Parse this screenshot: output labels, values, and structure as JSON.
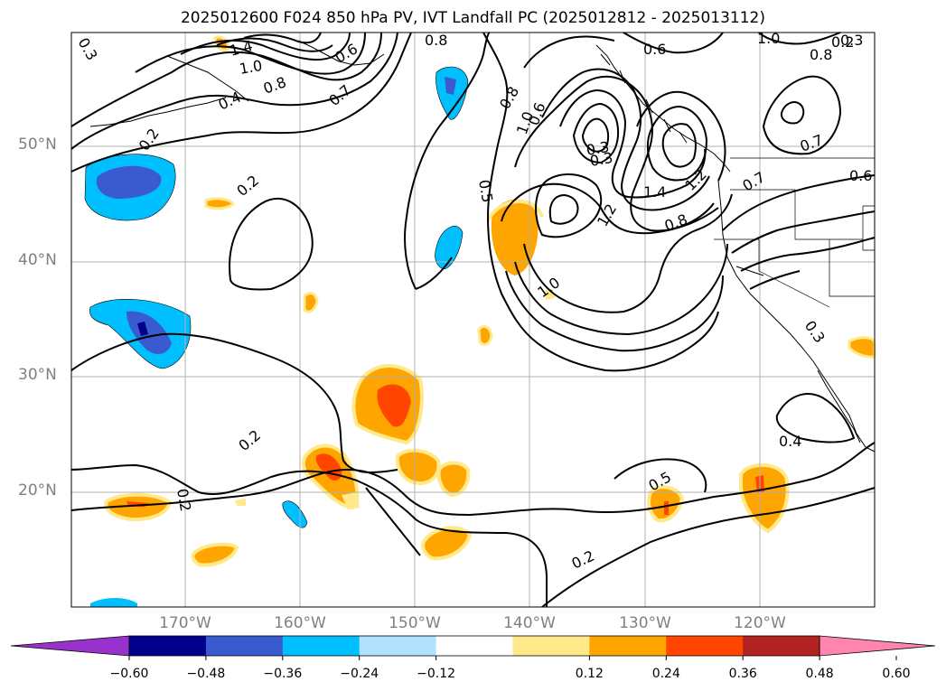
{
  "title": "2025012600 F024 850 hPa PV, IVT Landfall PC (2025012812 - 2025013112)",
  "lat_labels": [
    "50°N",
    "40°N",
    "30°N",
    "20°N"
  ],
  "lon_labels": [
    "170°W",
    "160°W",
    "150°W",
    "140°W",
    "130°W",
    "120°W"
  ],
  "colorbar": {
    "colors": [
      "#9932cc",
      "#00008b",
      "#3a5bd0",
      "#00bfff",
      "#b0e2ff",
      "#ffffff",
      "#ffe98a",
      "#ffa500",
      "#ff4500",
      "#b22222",
      "#ff85b0"
    ],
    "ticks": [
      "−0.60",
      "−0.48",
      "−0.36",
      "−0.24",
      "−0.12",
      "0.12",
      "0.24",
      "0.36",
      "0.48",
      "0.60"
    ]
  },
  "contour_labels": [
    "1.4",
    "1.0",
    "0.8",
    "0.6",
    "0.4",
    "0.7",
    "0.8",
    "0.6",
    "1.0",
    "0.8",
    "0.2",
    "0.2",
    "0.2",
    "0.2",
    "0.2",
    "0.5",
    "0.8",
    "0.6",
    "1.0",
    "0.3",
    "0.3",
    "1.4",
    "1.2",
    "1.2",
    "0.8",
    "0.7",
    "0.6",
    "0.7",
    "1.0",
    "0.3",
    "0.4",
    "0.5",
    "0.2",
    "0.3",
    "0.3"
  ]
}
